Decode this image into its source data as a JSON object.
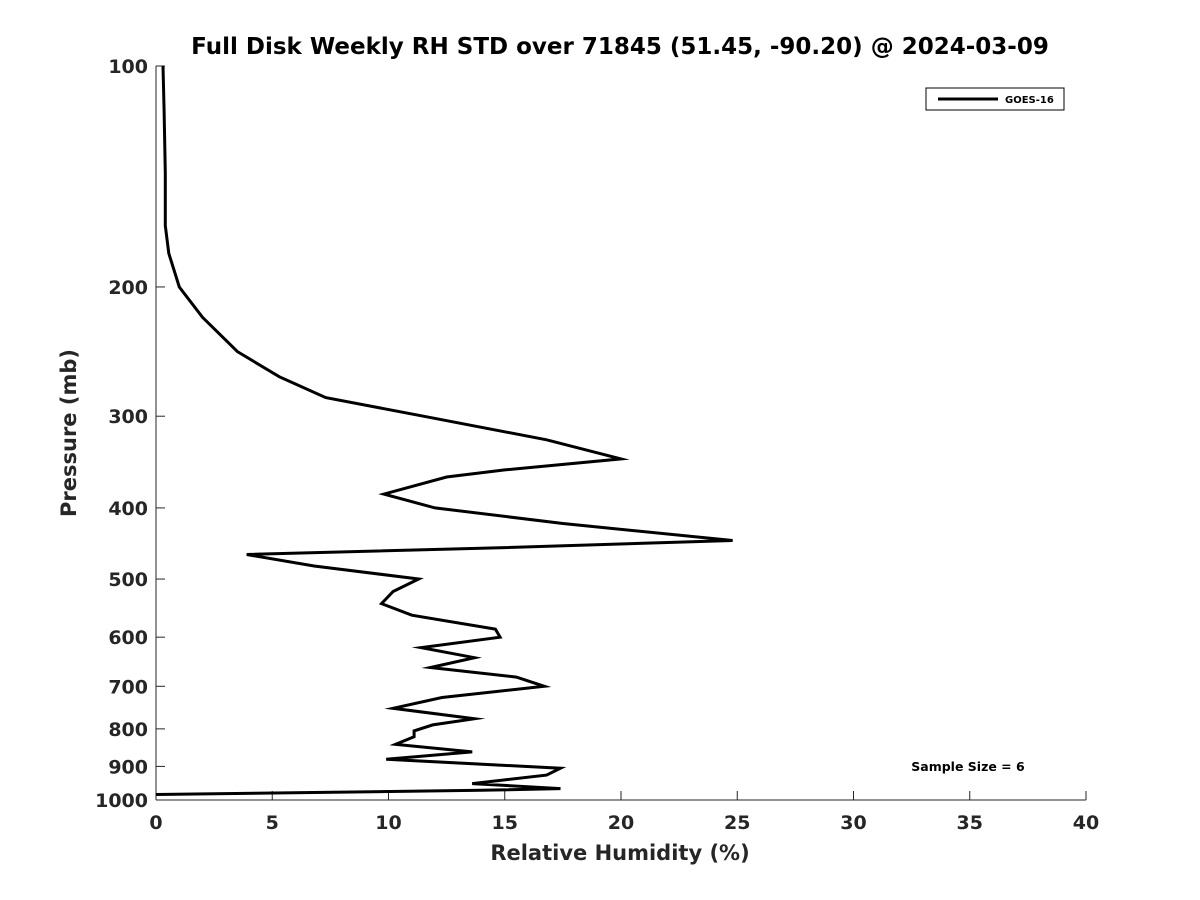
{
  "chart_data": {
    "type": "line",
    "title": "Full Disk Weekly RH STD over 71845 (51.45, -90.20) @ 2024-03-09",
    "xlabel": "Relative Humidity (%)",
    "ylabel": "Pressure (mb)",
    "xlim": [
      0,
      40
    ],
    "ylim": [
      100,
      1000
    ],
    "yscale": "log",
    "reversed_y": true,
    "grid": false,
    "legend_position": "top-right",
    "x_ticks": [
      "0",
      "5",
      "10",
      "15",
      "20",
      "25",
      "30",
      "35",
      "40"
    ],
    "x_tick_values": [
      0,
      5,
      10,
      15,
      20,
      25,
      30,
      35,
      40
    ],
    "y_ticks": [
      "100",
      "200",
      "300",
      "400",
      "500",
      "600",
      "700",
      "800",
      "900",
      "1000"
    ],
    "y_tick_values": [
      100,
      200,
      300,
      400,
      500,
      600,
      700,
      800,
      900,
      1000
    ],
    "annotation": "Sample Size = 6",
    "series": [
      {
        "name": "GOES-16",
        "color": "#000000",
        "points": [
          [
            0.3,
            100
          ],
          [
            0.35,
            115
          ],
          [
            0.4,
            140
          ],
          [
            0.4,
            165
          ],
          [
            0.55,
            180
          ],
          [
            1.0,
            200
          ],
          [
            2.0,
            220
          ],
          [
            3.5,
            245
          ],
          [
            5.3,
            265
          ],
          [
            7.3,
            283
          ],
          [
            11.5,
            300
          ],
          [
            16.8,
            323
          ],
          [
            20.0,
            343
          ],
          [
            15.0,
            355
          ],
          [
            12.5,
            363
          ],
          [
            9.8,
            383
          ],
          [
            12.0,
            400
          ],
          [
            17.5,
            420
          ],
          [
            24.8,
            443
          ],
          [
            15.0,
            453
          ],
          [
            3.9,
            463
          ],
          [
            6.8,
            480
          ],
          [
            11.3,
            500
          ],
          [
            10.2,
            520
          ],
          [
            9.7,
            540
          ],
          [
            11.0,
            560
          ],
          [
            14.6,
            585
          ],
          [
            14.8,
            600
          ],
          [
            11.4,
            620
          ],
          [
            13.7,
            640
          ],
          [
            11.8,
            660
          ],
          [
            15.5,
            680
          ],
          [
            16.7,
            700
          ],
          [
            12.3,
            725
          ],
          [
            10.2,
            750
          ],
          [
            13.7,
            775
          ],
          [
            11.9,
            790
          ],
          [
            11.1,
            805
          ],
          [
            11.1,
            820
          ],
          [
            10.3,
            840
          ],
          [
            13.6,
            860
          ],
          [
            9.9,
            880
          ],
          [
            17.4,
            905
          ],
          [
            16.8,
            925
          ],
          [
            13.6,
            950
          ],
          [
            17.4,
            965
          ],
          [
            14.0,
            970
          ],
          [
            0.0,
            983
          ]
        ]
      }
    ]
  }
}
